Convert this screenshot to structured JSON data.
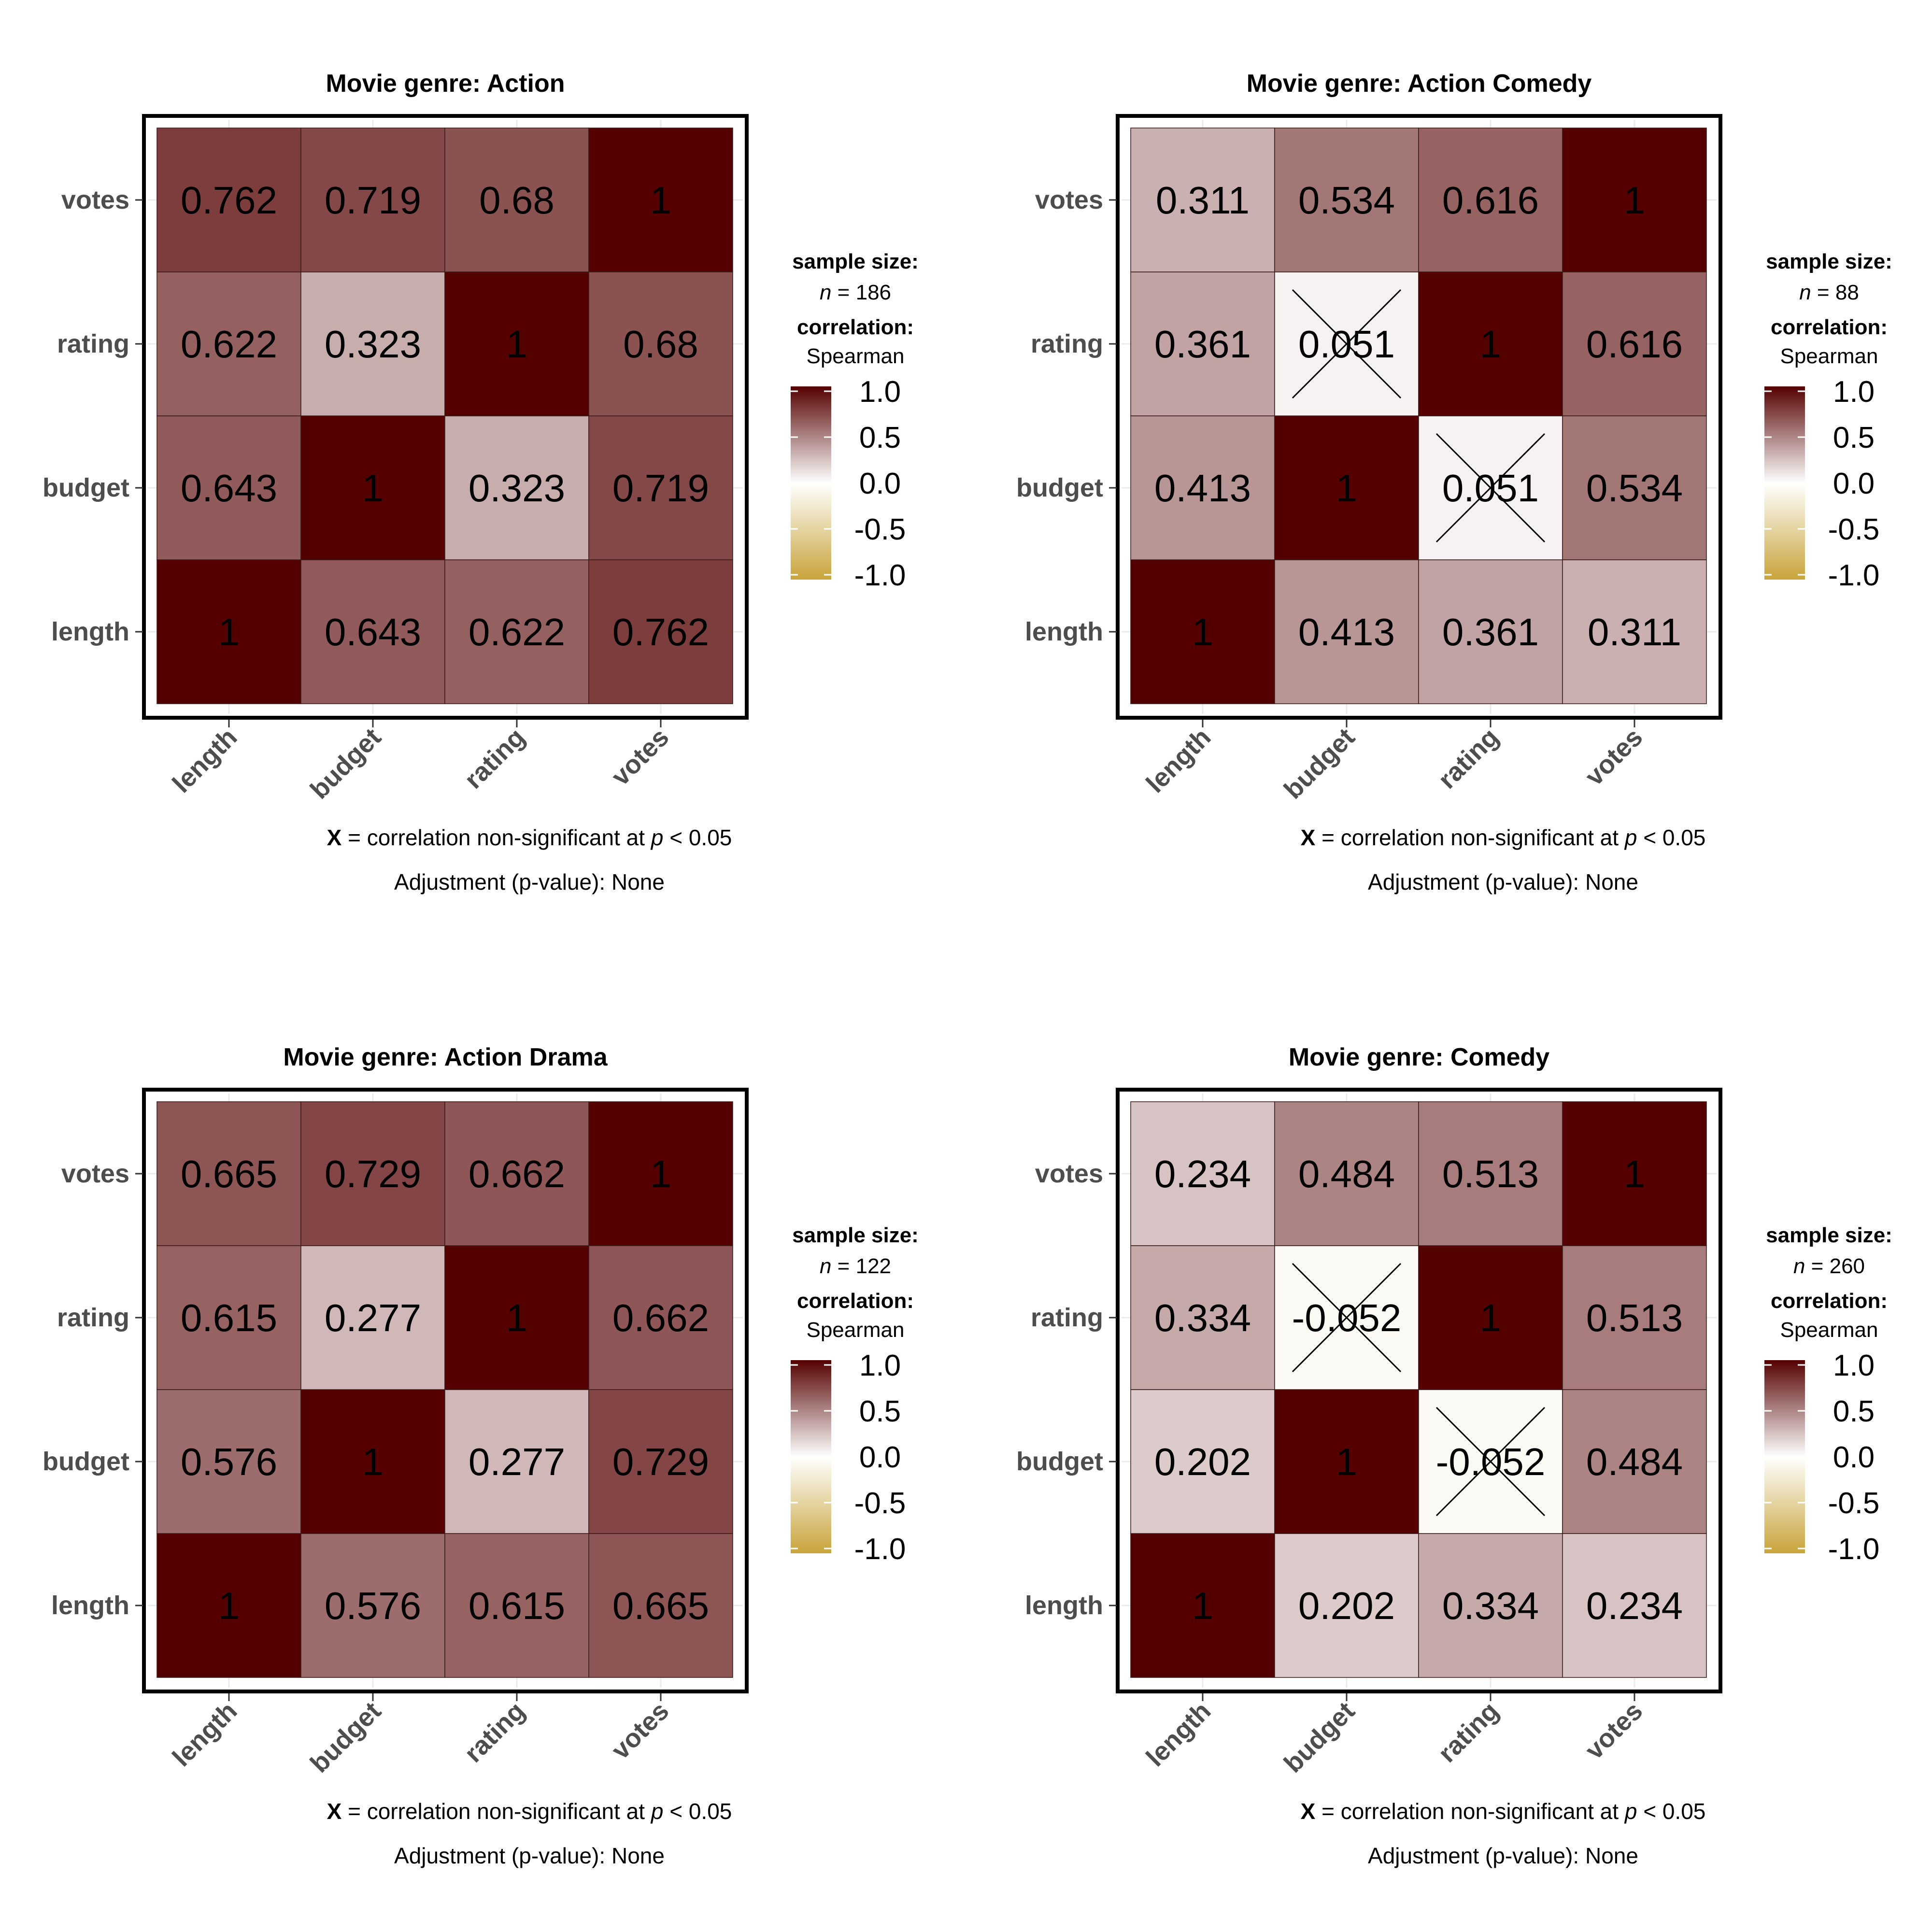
{
  "legend_colors": {
    "high": "#550000",
    "mid": "#ffffff",
    "low": "#c9a43b"
  },
  "chart_data": [
    {
      "type": "heatmap",
      "title": "Movie genre: Action",
      "variables": [
        "length",
        "budget",
        "rating",
        "votes"
      ],
      "matrix": [
        [
          1,
          0.643,
          0.622,
          0.762
        ],
        [
          0.643,
          1,
          0.323,
          0.719
        ],
        [
          0.622,
          0.323,
          1,
          0.68
        ],
        [
          0.762,
          0.719,
          0.68,
          1
        ]
      ],
      "labels": [
        [
          "1",
          "0.643",
          "0.622",
          "0.762"
        ],
        [
          "0.643",
          "1",
          "0.323",
          "0.719"
        ],
        [
          "0.622",
          "0.323",
          "1",
          "0.68"
        ],
        [
          "0.762",
          "0.719",
          "0.68",
          "1"
        ]
      ],
      "non_significant": [],
      "legend": {
        "sample_size_label": "sample size:",
        "n_symbol": "n",
        "n_eq": " = ",
        "n_value": "186",
        "correlation_label": "correlation:",
        "correlation_method": "Spearman",
        "ticks": [
          "1.0",
          "0.5",
          "0.0",
          "-0.5",
          "-1.0"
        ],
        "range": [
          -1,
          1
        ]
      },
      "caption_x": "X",
      "caption_text": " = correlation non-significant at ",
      "caption_p": "p",
      "caption_tail": " < 0.05",
      "subcaption": "Adjustment (p-value): None"
    },
    {
      "type": "heatmap",
      "title": "Movie genre: Action Comedy",
      "variables": [
        "length",
        "budget",
        "rating",
        "votes"
      ],
      "matrix": [
        [
          1,
          0.413,
          0.361,
          0.311
        ],
        [
          0.413,
          1,
          0.051,
          0.534
        ],
        [
          0.361,
          0.051,
          1,
          0.616
        ],
        [
          0.311,
          0.534,
          0.616,
          1
        ]
      ],
      "labels": [
        [
          "1",
          "0.413",
          "0.361",
          "0.311"
        ],
        [
          "0.413",
          "1",
          "0.051",
          "0.534"
        ],
        [
          "0.361",
          "0.051",
          "1",
          "0.616"
        ],
        [
          "0.311",
          "0.534",
          "0.616",
          "1"
        ]
      ],
      "non_significant": [
        [
          1,
          2
        ],
        [
          2,
          1
        ]
      ],
      "legend": {
        "sample_size_label": "sample size:",
        "n_symbol": "n",
        "n_eq": " = ",
        "n_value": "88",
        "correlation_label": "correlation:",
        "correlation_method": "Spearman",
        "ticks": [
          "1.0",
          "0.5",
          "0.0",
          "-0.5",
          "-1.0"
        ],
        "range": [
          -1,
          1
        ]
      },
      "caption_x": "X",
      "caption_text": " = correlation non-significant at ",
      "caption_p": "p",
      "caption_tail": " < 0.05",
      "subcaption": "Adjustment (p-value): None"
    },
    {
      "type": "heatmap",
      "title": "Movie genre: Action Drama",
      "variables": [
        "length",
        "budget",
        "rating",
        "votes"
      ],
      "matrix": [
        [
          1,
          0.576,
          0.615,
          0.665
        ],
        [
          0.576,
          1,
          0.277,
          0.729
        ],
        [
          0.615,
          0.277,
          1,
          0.662
        ],
        [
          0.665,
          0.729,
          0.662,
          1
        ]
      ],
      "labels": [
        [
          "1",
          "0.576",
          "0.615",
          "0.665"
        ],
        [
          "0.576",
          "1",
          "0.277",
          "0.729"
        ],
        [
          "0.615",
          "0.277",
          "1",
          "0.662"
        ],
        [
          "0.665",
          "0.729",
          "0.662",
          "1"
        ]
      ],
      "non_significant": [],
      "legend": {
        "sample_size_label": "sample size:",
        "n_symbol": "n",
        "n_eq": " = ",
        "n_value": "122",
        "correlation_label": "correlation:",
        "correlation_method": "Spearman",
        "ticks": [
          "1.0",
          "0.5",
          "0.0",
          "-0.5",
          "-1.0"
        ],
        "range": [
          -1,
          1
        ]
      },
      "caption_x": "X",
      "caption_text": " = correlation non-significant at ",
      "caption_p": "p",
      "caption_tail": " < 0.05",
      "subcaption": "Adjustment (p-value): None"
    },
    {
      "type": "heatmap",
      "title": "Movie genre: Comedy",
      "variables": [
        "length",
        "budget",
        "rating",
        "votes"
      ],
      "matrix": [
        [
          1,
          0.202,
          0.334,
          0.234
        ],
        [
          0.202,
          1,
          -0.052,
          0.484
        ],
        [
          0.334,
          -0.052,
          1,
          0.513
        ],
        [
          0.234,
          0.484,
          0.513,
          1
        ]
      ],
      "labels": [
        [
          "1",
          "0.202",
          "0.334",
          "0.234"
        ],
        [
          "0.202",
          "1",
          "-0.052",
          "0.484"
        ],
        [
          "0.334",
          "-0.052",
          "1",
          "0.513"
        ],
        [
          "0.234",
          "0.484",
          "0.513",
          "1"
        ]
      ],
      "non_significant": [
        [
          1,
          2
        ],
        [
          2,
          1
        ]
      ],
      "legend": {
        "sample_size_label": "sample size:",
        "n_symbol": "n",
        "n_eq": " = ",
        "n_value": "260",
        "correlation_label": "correlation:",
        "correlation_method": "Spearman",
        "ticks": [
          "1.0",
          "0.5",
          "0.0",
          "-0.5",
          "-1.0"
        ],
        "range": [
          -1,
          1
        ]
      },
      "caption_x": "X",
      "caption_text": " = correlation non-significant at ",
      "caption_p": "p",
      "caption_tail": " < 0.05",
      "subcaption": "Adjustment (p-value): None"
    }
  ]
}
